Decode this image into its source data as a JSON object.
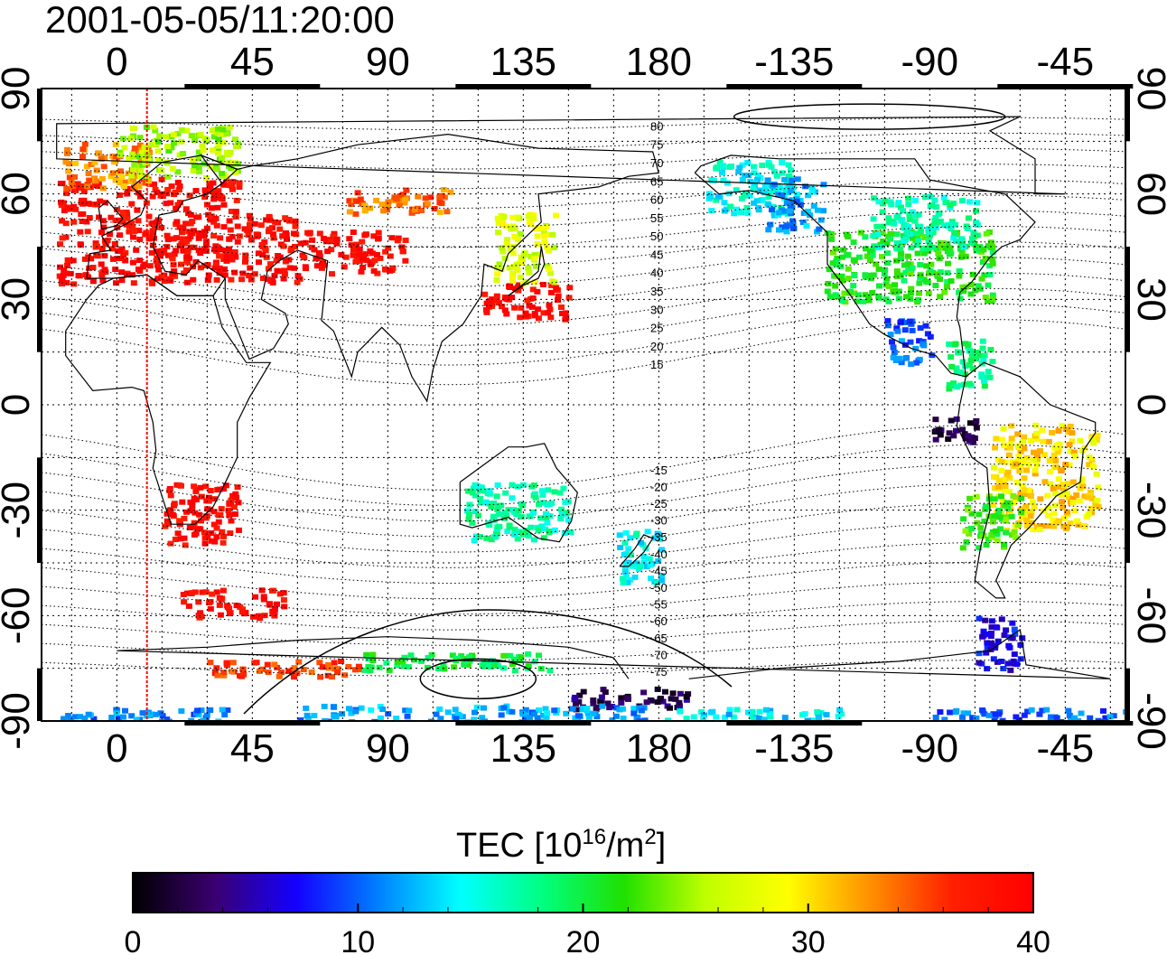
{
  "timestamp": "2001-05-05/11:20:00",
  "longitude_ticks": [
    "0",
    "45",
    "90",
    "135",
    "180",
    "-135",
    "-90",
    "-45"
  ],
  "latitude_ticks": [
    "90",
    "60",
    "30",
    "0",
    "-30",
    "-60",
    "-90"
  ],
  "magnetic_latitude_labels": {
    "north": [
      "80",
      "75",
      "70",
      "65",
      "60",
      "55",
      "50",
      "45",
      "40",
      "35",
      "30",
      "25",
      "20",
      "15"
    ],
    "south": [
      "-15",
      "-20",
      "-25",
      "-30",
      "-35",
      "-40",
      "-45",
      "-50",
      "-55",
      "-60",
      "-65",
      "-70",
      "-75"
    ]
  },
  "colorbar": {
    "title_prefix": "TEC  [10",
    "title_exp": "16",
    "title_mid": "/m",
    "title_exp2": "2",
    "title_suffix": "]",
    "tick_labels": [
      "0",
      "10",
      "20",
      "30",
      "40"
    ],
    "range": [
      0,
      40
    ],
    "colors": [
      "#000000",
      "#3a0070",
      "#1400ff",
      "#0080ff",
      "#00ffff",
      "#00ff80",
      "#20e000",
      "#c0ff00",
      "#ffff00",
      "#ff9000",
      "#ff2000",
      "#ff0000"
    ]
  },
  "map": {
    "lon_range": [
      -25,
      335
    ],
    "lat_range": [
      -90,
      90
    ],
    "sun_lon_line": 10,
    "sun_line_color": "#ff0000",
    "grid": true
  },
  "tec_regions": [
    {
      "lon": [
        -20,
        40
      ],
      "lat": [
        35,
        65
      ],
      "tec": 39
    },
    {
      "lon": [
        -18,
        10
      ],
      "lat": [
        62,
        75
      ],
      "tec": 33
    },
    {
      "lon": [
        0,
        40
      ],
      "lat": [
        65,
        80
      ],
      "tec": 25
    },
    {
      "lon": [
        40,
        60
      ],
      "lat": [
        35,
        55
      ],
      "tec": 39
    },
    {
      "lon": [
        60,
        95
      ],
      "lat": [
        38,
        50
      ],
      "tec": 39
    },
    {
      "lon": [
        75,
        110
      ],
      "lat": [
        55,
        62
      ],
      "tec": 34
    },
    {
      "lon": [
        120,
        150
      ],
      "lat": [
        25,
        35
      ],
      "tec": 39
    },
    {
      "lon": [
        125,
        145
      ],
      "lat": [
        35,
        55
      ],
      "tec": 27
    },
    {
      "lon": [
        15,
        40
      ],
      "lat": [
        -40,
        -22
      ],
      "tec": 39
    },
    {
      "lon": [
        20,
        55
      ],
      "lat": [
        -60,
        -52
      ],
      "tec": 39
    },
    {
      "lon": [
        195,
        225
      ],
      "lat": [
        55,
        70
      ],
      "tec": 15
    },
    {
      "lon": [
        215,
        235
      ],
      "lat": [
        50,
        65
      ],
      "tec": 12
    },
    {
      "lon": [
        235,
        290
      ],
      "lat": [
        30,
        50
      ],
      "tec": 21
    },
    {
      "lon": [
        250,
        285
      ],
      "lat": [
        45,
        60
      ],
      "tec": 17
    },
    {
      "lon": [
        255,
        270
      ],
      "lat": [
        12,
        25
      ],
      "tec": 10
    },
    {
      "lon": [
        275,
        290
      ],
      "lat": [
        5,
        20
      ],
      "tec": 18
    },
    {
      "lon": [
        270,
        285
      ],
      "lat": [
        -10,
        -2
      ],
      "tec": 2
    },
    {
      "lon": [
        290,
        325
      ],
      "lat": [
        -35,
        -5
      ],
      "tec": 30
    },
    {
      "lon": [
        280,
        300
      ],
      "lat": [
        -40,
        -25
      ],
      "tec": 22
    },
    {
      "lon": [
        285,
        300
      ],
      "lat": [
        -75,
        -60
      ],
      "tec": 7
    },
    {
      "lon": [
        115,
        150
      ],
      "lat": [
        -38,
        -22
      ],
      "tec": 17
    },
    {
      "lon": [
        165,
        180
      ],
      "lat": [
        -50,
        -35
      ],
      "tec": 15
    },
    {
      "lon": [
        150,
        190
      ],
      "lat": [
        -86,
        -80
      ],
      "tec": 3
    },
    {
      "lon": [
        -20,
        40
      ],
      "lat": [
        -90,
        -86
      ],
      "tec": 11
    },
    {
      "lon": [
        60,
        175
      ],
      "lat": [
        -90,
        -85
      ],
      "tec": 12
    },
    {
      "lon": [
        180,
        240
      ],
      "lat": [
        -90,
        -86
      ],
      "tec": 14
    },
    {
      "lon": [
        270,
        335
      ],
      "lat": [
        -90,
        -86
      ],
      "tec": 10
    },
    {
      "lon": [
        30,
        80
      ],
      "lat": [
        -77,
        -72
      ],
      "tec": 36
    },
    {
      "lon": [
        80,
        145
      ],
      "lat": [
        -75,
        -70
      ],
      "tec": 20
    }
  ]
}
